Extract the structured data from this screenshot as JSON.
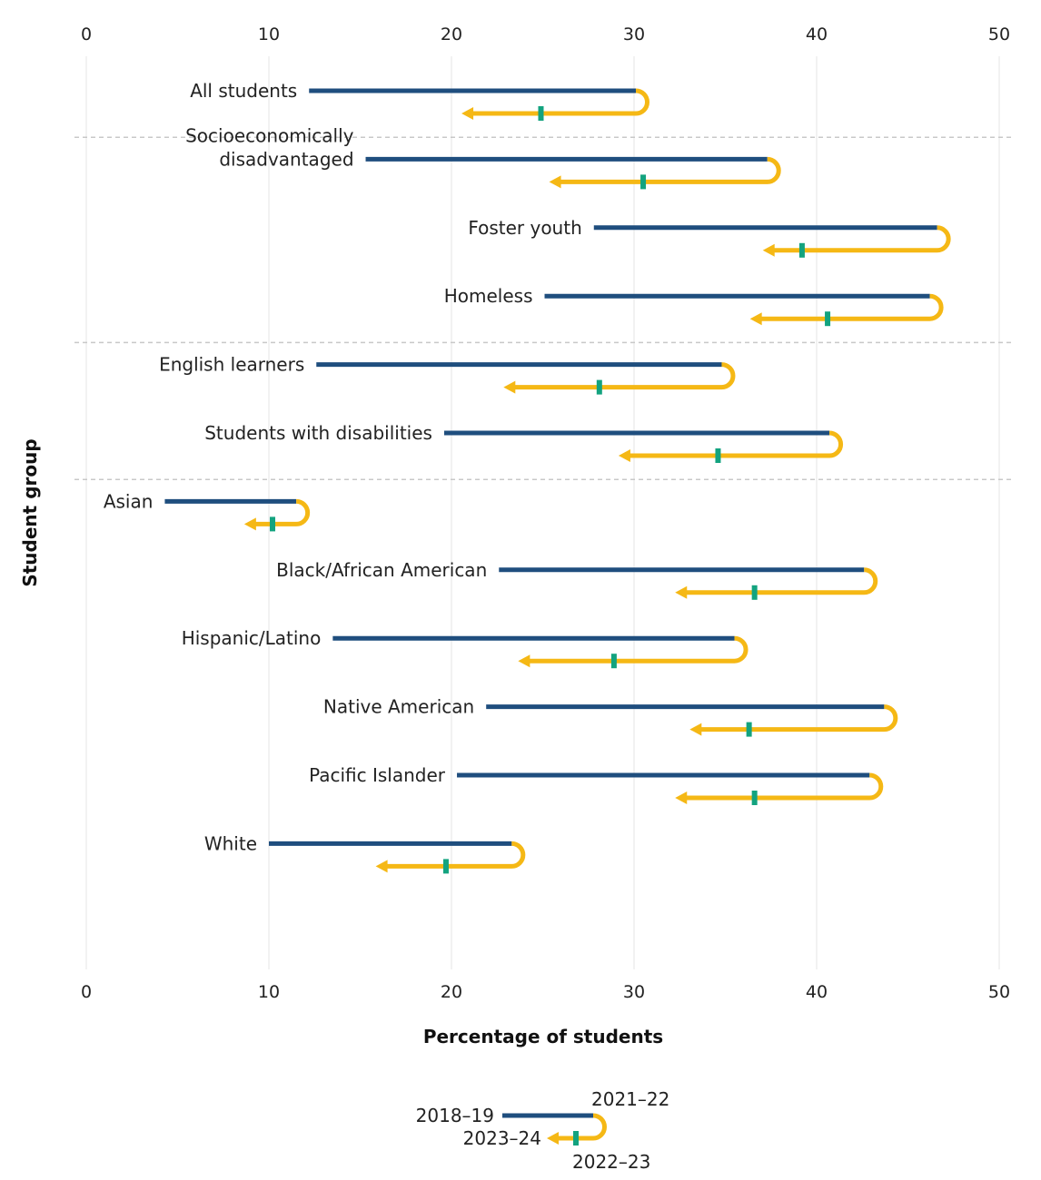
{
  "chart_data": {
    "type": "dumbbell-trajectory",
    "xlabel": "Percentage of students",
    "ylabel": "Student group",
    "xlim": [
      0,
      50
    ],
    "xticks": [
      0,
      10,
      20,
      30,
      40,
      50
    ],
    "grid": true,
    "colors": {
      "pre_to_peak": "#1f4e7e",
      "peak_to_latest": "#f5b815",
      "mid_marker": "#13a37f",
      "separator": "#c8c8c8",
      "grid": "#e6e6e6"
    },
    "legend": {
      "placement": "bottom-center",
      "start_label": "2018–19",
      "peak_label": "2021–22",
      "mid_label": "2022–23",
      "end_label": "2023–24"
    },
    "separators_after": [
      0,
      3,
      5
    ],
    "series": [
      {
        "group": "All students",
        "label_lines": [
          "All students"
        ],
        "v2018_19": 12.2,
        "v2021_22": 30.1,
        "v2022_23": 24.9,
        "v2023_24": 20.7
      },
      {
        "group": "Socioeconomically disadvantaged",
        "label_lines": [
          "Socioeconomically",
          "disadvantaged"
        ],
        "v2018_19": 15.3,
        "v2021_22": 37.3,
        "v2022_23": 30.5,
        "v2023_24": 25.5
      },
      {
        "group": "Foster youth",
        "label_lines": [
          "Foster youth"
        ],
        "v2018_19": 27.8,
        "v2021_22": 46.6,
        "v2022_23": 39.2,
        "v2023_24": 37.2
      },
      {
        "group": "Homeless",
        "label_lines": [
          "Homeless"
        ],
        "v2018_19": 25.1,
        "v2021_22": 46.2,
        "v2022_23": 40.6,
        "v2023_24": 36.5
      },
      {
        "group": "English learners",
        "label_lines": [
          "English learners"
        ],
        "v2018_19": 12.6,
        "v2021_22": 34.8,
        "v2022_23": 28.1,
        "v2023_24": 23.0
      },
      {
        "group": "Students with disabilities",
        "label_lines": [
          "Students with disabilities"
        ],
        "v2018_19": 19.6,
        "v2021_22": 40.7,
        "v2022_23": 34.6,
        "v2023_24": 29.3
      },
      {
        "group": "Asian",
        "label_lines": [
          "Asian"
        ],
        "v2018_19": 4.3,
        "v2021_22": 11.5,
        "v2022_23": 10.2,
        "v2023_24": 8.8
      },
      {
        "group": "Black/African American",
        "label_lines": [
          "Black/African American"
        ],
        "v2018_19": 22.6,
        "v2021_22": 42.6,
        "v2022_23": 36.6,
        "v2023_24": 32.4
      },
      {
        "group": "Hispanic/Latino",
        "label_lines": [
          "Hispanic/Latino"
        ],
        "v2018_19": 13.5,
        "v2021_22": 35.5,
        "v2022_23": 28.9,
        "v2023_24": 23.8
      },
      {
        "group": "Native American",
        "label_lines": [
          "Native American"
        ],
        "v2018_19": 21.9,
        "v2021_22": 43.7,
        "v2022_23": 36.3,
        "v2023_24": 33.2
      },
      {
        "group": "Pacific Islander",
        "label_lines": [
          "Pacific Islander"
        ],
        "v2018_19": 20.3,
        "v2021_22": 42.9,
        "v2022_23": 36.6,
        "v2023_24": 32.4
      },
      {
        "group": "White",
        "label_lines": [
          "White"
        ],
        "v2018_19": 10.0,
        "v2021_22": 23.3,
        "v2022_23": 19.7,
        "v2023_24": 16.0
      }
    ]
  }
}
